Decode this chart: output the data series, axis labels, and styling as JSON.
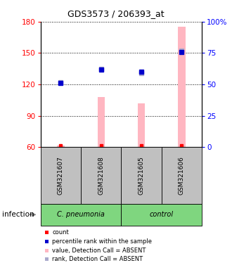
{
  "title": "GDS3573 / 206393_at",
  "samples": [
    "GSM321607",
    "GSM321608",
    "GSM321605",
    "GSM321606"
  ],
  "group_labels": [
    "C. pneumonia",
    "control"
  ],
  "group_color": "#7FD67F",
  "ylim_left": [
    60,
    180
  ],
  "ylim_right": [
    0,
    100
  ],
  "yticks_left": [
    60,
    90,
    120,
    150,
    180
  ],
  "yticks_right": [
    0,
    25,
    50,
    75,
    100
  ],
  "bar_values": [
    61.5,
    108,
    102,
    175
  ],
  "rank_pct_values": [
    51,
    62,
    60,
    76
  ],
  "count_values": [
    61.5,
    61.5,
    61.5,
    61.5
  ],
  "rank_absent_values": [
    122,
    135,
    131,
    152
  ],
  "bar_color": "#FFB6C1",
  "rank_absent_color": "#AAAACC",
  "rank_pct_color": "#0000CC",
  "count_color": "#FF0000",
  "sample_box_color": "#C0C0C0",
  "infection_label": "infection",
  "legend_items": [
    {
      "label": "count",
      "color": "#FF0000"
    },
    {
      "label": "percentile rank within the sample",
      "color": "#0000CC"
    },
    {
      "label": "value, Detection Call = ABSENT",
      "color": "#FFB6C1"
    },
    {
      "label": "rank, Detection Call = ABSENT",
      "color": "#AAAACC"
    }
  ]
}
